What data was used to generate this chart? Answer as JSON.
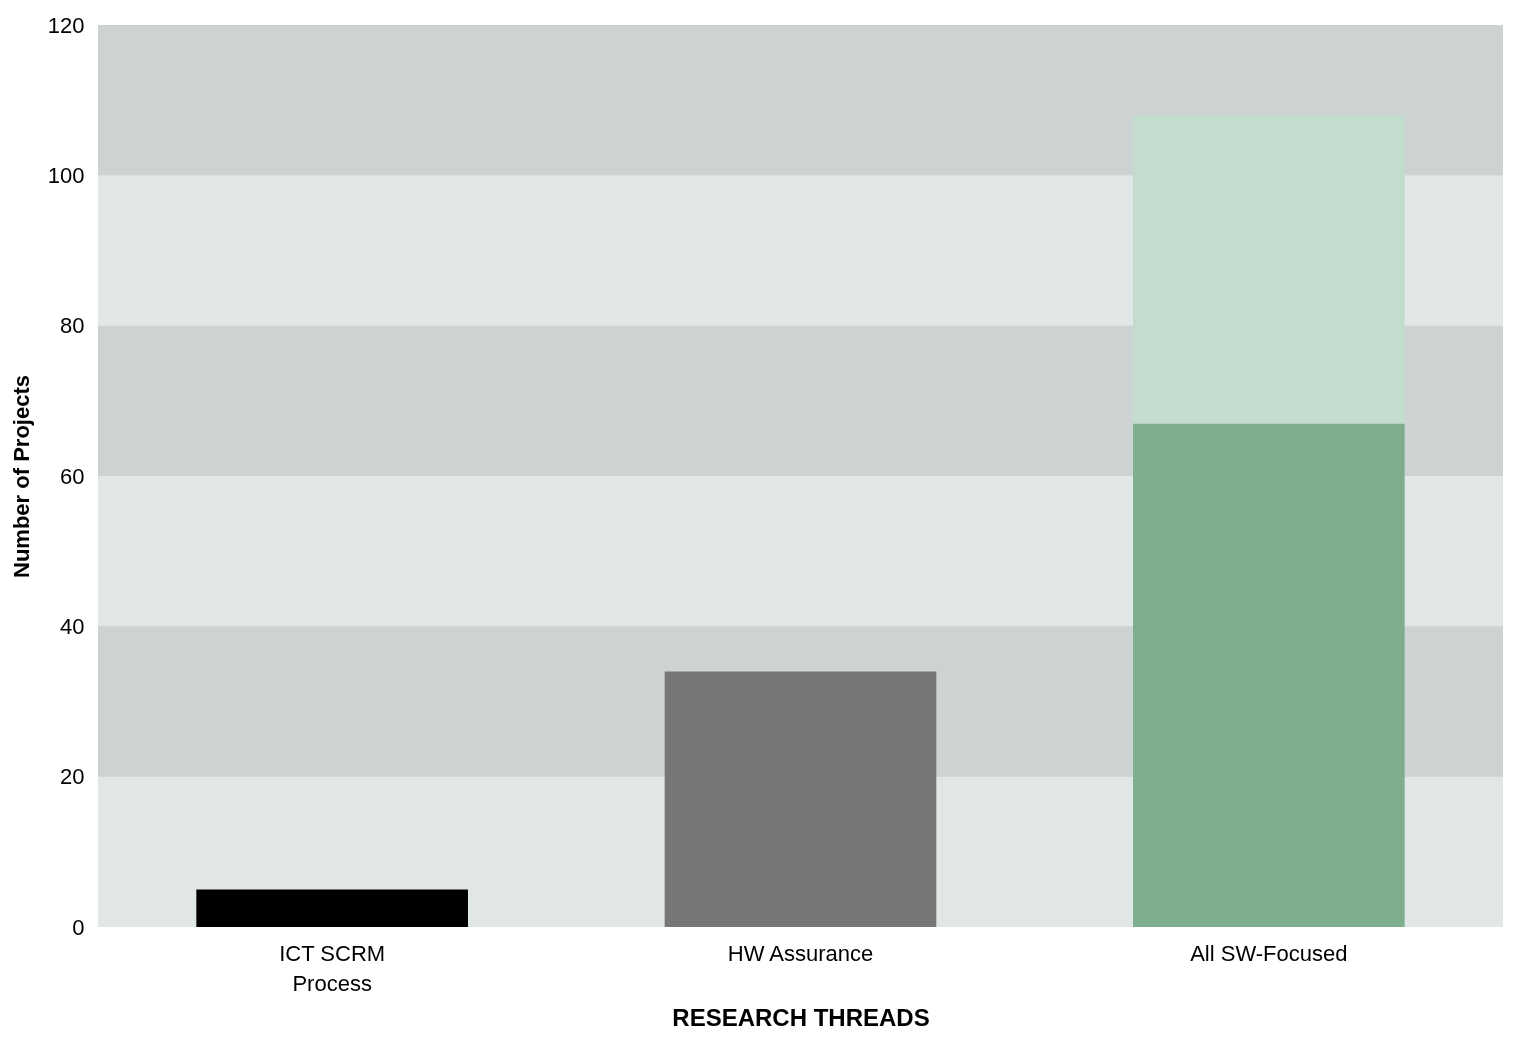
{
  "chart_data": {
    "type": "bar",
    "stacked": true,
    "xlabel": "RESEARCH THREADS",
    "ylabel": "Number of Projects",
    "categories": [
      "ICT SCRM Process",
      "HW Assurance",
      "All SW-Focused"
    ],
    "series": [
      {
        "colors": [
          "#000000",
          "#777777",
          "#7fae8f"
        ],
        "values": [
          5,
          34,
          67
        ]
      },
      {
        "color": "#c4dccd",
        "values": [
          null,
          null,
          41
        ]
      }
    ],
    "ylim": [
      0,
      120
    ],
    "yticks": [
      0,
      20,
      40,
      60,
      80,
      100,
      120
    ],
    "grid": false,
    "bands": [
      {
        "axis": "y",
        "from": 20,
        "to": 40,
        "color": "#cdd2d3"
      },
      {
        "axis": "y",
        "from": 60,
        "to": 80,
        "color": "#cdd2d3"
      },
      {
        "axis": "y",
        "from": 100,
        "to": 120,
        "color": "#cdd2d3"
      }
    ]
  }
}
